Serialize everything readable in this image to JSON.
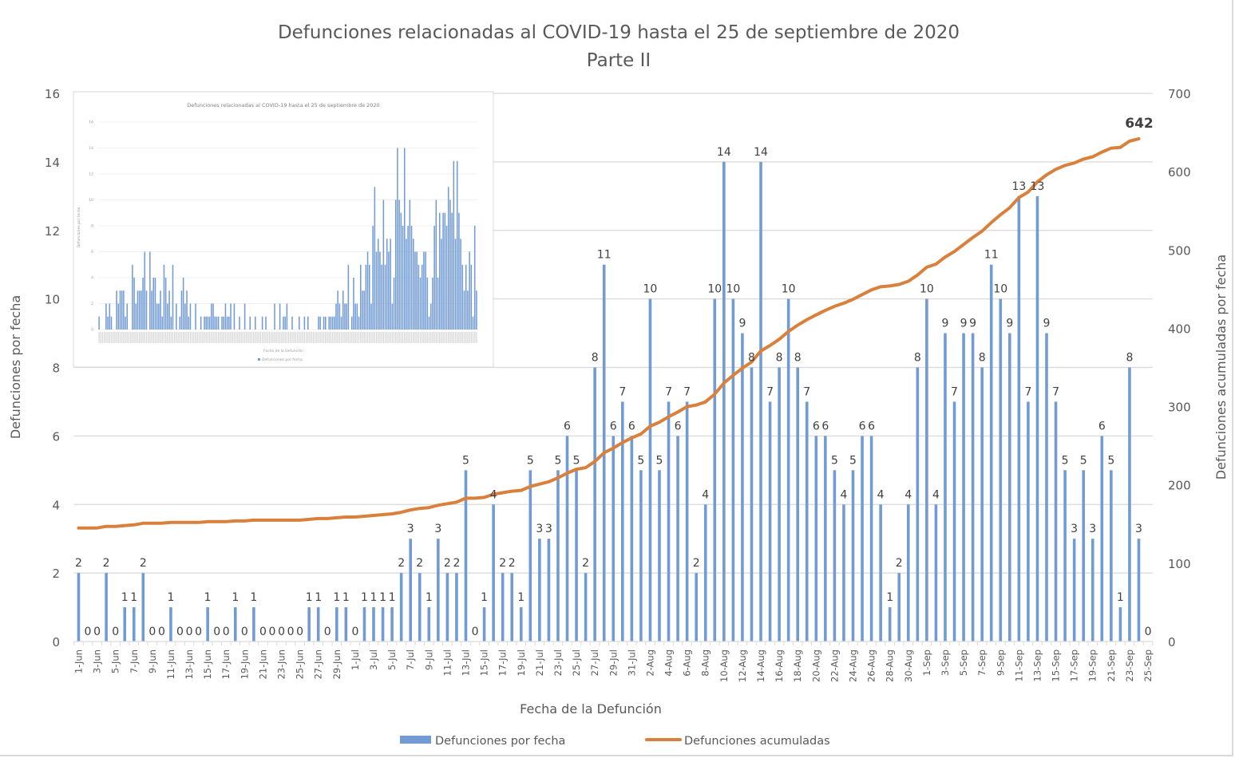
{
  "colors": {
    "bar": "#729BD4",
    "line": "#D9803C",
    "grid": "#D9D9D9",
    "text": "#595959"
  },
  "chart_data": [
    {
      "type": "bar+line",
      "title": "Defunciones relacionadas al COVID-19 hasta el 25 de septiembre de 2020",
      "subtitle": "Parte II",
      "xlabel": "Fecha de la Defunción",
      "ylabel": "Defunciones por fecha",
      "y2label": "Defunciones acumuladas por fecha",
      "ylim": [
        0,
        16
      ],
      "y_ticks": [
        "0",
        "2",
        "4",
        "6",
        "8",
        "10",
        "12",
        "14",
        "16"
      ],
      "y2lim": [
        0,
        700
      ],
      "y2_ticks": [
        "0",
        "100",
        "200",
        "300",
        "400",
        "500",
        "600",
        "700"
      ],
      "grid": true,
      "legend_position": "bottom",
      "categories": [
        "1-Jun",
        "2-Jun",
        "3-Jun",
        "4-Jun",
        "5-Jun",
        "6-Jun",
        "7-Jun",
        "8-Jun",
        "9-Jun",
        "10-Jun",
        "11-Jun",
        "12-Jun",
        "13-Jun",
        "14-Jun",
        "15-Jun",
        "16-Jun",
        "17-Jun",
        "18-Jun",
        "19-Jun",
        "20-Jun",
        "21-Jun",
        "22-Jun",
        "23-Jun",
        "24-Jun",
        "25-Jun",
        "26-Jun",
        "27-Jun",
        "28-Jun",
        "29-Jun",
        "30-Jun",
        "1-Jul",
        "2-Jul",
        "3-Jul",
        "4-Jul",
        "5-Jul",
        "6-Jul",
        "7-Jul",
        "8-Jul",
        "9-Jul",
        "10-Jul",
        "11-Jul",
        "12-Jul",
        "13-Jul",
        "14-Jul",
        "15-Jul",
        "16-Jul",
        "17-Jul",
        "18-Jul",
        "19-Jul",
        "20-Jul",
        "21-Jul",
        "22-Jul",
        "23-Jul",
        "24-Jul",
        "25-Jul",
        "26-Jul",
        "27-Jul",
        "28-Jul",
        "29-Jul",
        "30-Jul",
        "31-Jul",
        "1-Aug",
        "2-Aug",
        "3-Aug",
        "4-Aug",
        "5-Aug",
        "6-Aug",
        "7-Aug",
        "8-Aug",
        "9-Aug",
        "10-Aug",
        "11-Aug",
        "12-Aug",
        "13-Aug",
        "14-Aug",
        "15-Aug",
        "16-Aug",
        "17-Aug",
        "18-Aug",
        "19-Aug",
        "20-Aug",
        "21-Aug",
        "22-Aug",
        "23-Aug",
        "24-Aug",
        "25-Aug",
        "26-Aug",
        "27-Aug",
        "28-Aug",
        "29-Aug",
        "30-Aug",
        "31-Aug",
        "1-Sep",
        "2-Sep",
        "3-Sep",
        "4-Sep",
        "5-Sep",
        "6-Sep",
        "7-Sep",
        "8-Sep",
        "9-Sep",
        "10-Sep",
        "11-Sep",
        "12-Sep",
        "13-Sep",
        "14-Sep",
        "15-Sep",
        "16-Sep",
        "17-Sep",
        "18-Sep",
        "19-Sep",
        "20-Sep",
        "21-Sep",
        "22-Sep",
        "23-Sep",
        "24-Sep",
        "25-Sep"
      ],
      "series": [
        {
          "name": "Defunciones por fecha",
          "type": "bar",
          "axis": "left",
          "values": [
            2,
            0,
            0,
            2,
            0,
            1,
            1,
            2,
            0,
            0,
            1,
            0,
            0,
            0,
            1,
            0,
            0,
            1,
            0,
            1,
            0,
            0,
            0,
            0,
            0,
            1,
            1,
            0,
            1,
            1,
            0,
            1,
            1,
            1,
            1,
            2,
            3,
            2,
            1,
            3,
            2,
            2,
            5,
            0,
            1,
            4,
            2,
            2,
            1,
            5,
            3,
            3,
            5,
            6,
            5,
            2,
            8,
            11,
            6,
            7,
            6,
            5,
            10,
            5,
            7,
            6,
            7,
            2,
            4,
            10,
            14,
            10,
            9,
            8,
            14,
            7,
            8,
            10,
            8,
            7,
            6,
            6,
            5,
            4,
            5,
            6,
            6,
            4,
            1,
            2,
            4,
            8,
            10,
            4,
            9,
            7,
            9,
            9,
            8,
            11,
            10,
            9,
            13,
            7,
            13,
            9,
            7,
            5,
            3,
            5,
            3,
            6,
            5,
            1,
            8,
            3,
            0
          ]
        },
        {
          "name": "Defunciones acumuladas",
          "type": "line",
          "axis": "right",
          "start_before_first": 143,
          "final_label": "642"
        }
      ]
    },
    {
      "type": "bar",
      "title": "Defunciones relacionadas al COVID-19 hasta el 25 de septiembre de 2020",
      "xlabel": "Fecha de la Defunción",
      "ylabel": "Defunciones por fecha",
      "ylim": [
        0,
        16
      ],
      "y_ticks": [
        "0",
        "2",
        "4",
        "6",
        "8",
        "10",
        "12",
        "14",
        "16"
      ],
      "legend": "Defunciones por fecha",
      "values": [
        1,
        0,
        0,
        0,
        2,
        1,
        2,
        1,
        0,
        0,
        3,
        2,
        3,
        3,
        3,
        1,
        2,
        0,
        0,
        5,
        4,
        2,
        3,
        3,
        3,
        4,
        6,
        3,
        0,
        6,
        3,
        4,
        4,
        2,
        2,
        3,
        1,
        5,
        4,
        2,
        3,
        1,
        5,
        0,
        2,
        0,
        1,
        3,
        4,
        2,
        3,
        1,
        2,
        0,
        0,
        2,
        0,
        0,
        1,
        0,
        1,
        1,
        1,
        1,
        2,
        2,
        1,
        1,
        1,
        0,
        1,
        1,
        2,
        1,
        1,
        2,
        0,
        2,
        0,
        0,
        1,
        0,
        0,
        2,
        0,
        0,
        1,
        0,
        0,
        1,
        0,
        0,
        0,
        1,
        0,
        1,
        0,
        0,
        0,
        0,
        2,
        0,
        0,
        2,
        0,
        1,
        1,
        2,
        0,
        0,
        1,
        0,
        0,
        0,
        1,
        0,
        0,
        1,
        0,
        1,
        0,
        0,
        0,
        0,
        0,
        1,
        1,
        0,
        1,
        1,
        0,
        1,
        1,
        1,
        1,
        2,
        3,
        2,
        1,
        3,
        2,
        2,
        5,
        0,
        1,
        4,
        2,
        2,
        1,
        5,
        3,
        3,
        5,
        6,
        5,
        2,
        8,
        11,
        6,
        7,
        6,
        5,
        10,
        5,
        7,
        6,
        7,
        2,
        4,
        10,
        14,
        10,
        9,
        8,
        14,
        7,
        8,
        10,
        8,
        7,
        6,
        6,
        5,
        4,
        5,
        6,
        6,
        4,
        1,
        2,
        4,
        8,
        10,
        4,
        9,
        7,
        9,
        9,
        8,
        11,
        10,
        9,
        13,
        7,
        13,
        9,
        7,
        5,
        3,
        5,
        3,
        6,
        5,
        1,
        8,
        3
      ]
    }
  ]
}
